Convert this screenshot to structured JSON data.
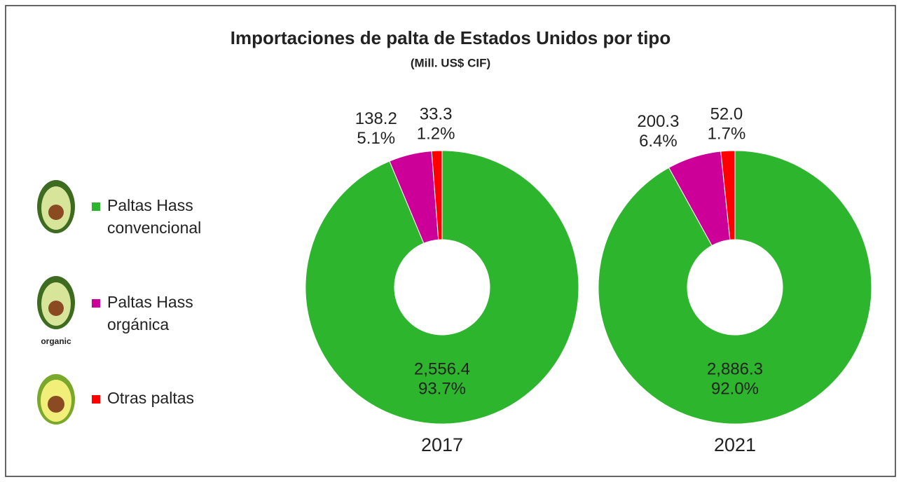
{
  "title": "Importaciones de palta de Estados Unidos por tipo",
  "subtitle": "(Mill. US$ CIF)",
  "icon_label": "organic",
  "chart_data": [
    {
      "type": "donut",
      "label": "2017",
      "categories": [
        "Paltas Hass convencional",
        "Paltas Hass orgánica",
        "Otras paltas"
      ],
      "colors": [
        "#2db52d",
        "#cc0099",
        "#ff0000"
      ],
      "values": [
        2556.4,
        138.2,
        33.3
      ],
      "value_labels": [
        "2,556.4",
        "138.2",
        "33.3"
      ],
      "percent_labels": [
        "93.7%",
        "5.1%",
        "1.2%"
      ]
    },
    {
      "type": "donut",
      "label": "2021",
      "categories": [
        "Paltas Hass convencional",
        "Paltas Hass orgánica",
        "Otras paltas"
      ],
      "colors": [
        "#2db52d",
        "#cc0099",
        "#ff0000"
      ],
      "values": [
        2886.3,
        200.3,
        52.0
      ],
      "value_labels": [
        "2,886.3",
        "200.3",
        "52.0"
      ],
      "percent_labels": [
        "92.0%",
        "6.4%",
        "1.7%"
      ]
    }
  ]
}
